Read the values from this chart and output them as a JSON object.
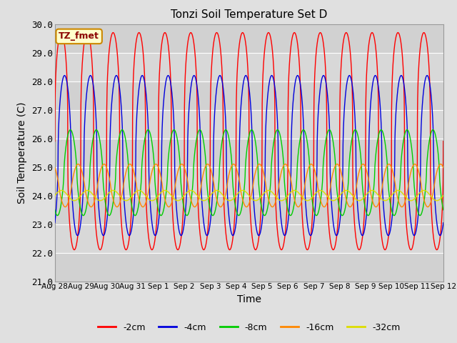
{
  "title": "Tonzi Soil Temperature Set D",
  "xlabel": "Time",
  "ylabel": "Soil Temperature (C)",
  "ylim": [
    21.0,
    30.0
  ],
  "yticks": [
    21.0,
    22.0,
    23.0,
    24.0,
    25.0,
    26.0,
    27.0,
    28.0,
    29.0,
    30.0
  ],
  "annotation_label": "TZ_fmet",
  "series_order": [
    "-2cm",
    "-4cm",
    "-8cm",
    "-16cm",
    "-32cm"
  ],
  "series": {
    "-2cm": {
      "color": "#ff0000",
      "amplitude": 3.8,
      "phase": 0.0,
      "mean": 25.9,
      "trend": 0.0,
      "sharpness": 3.0
    },
    "-4cm": {
      "color": "#0000dd",
      "amplitude": 2.8,
      "phase": 0.25,
      "mean": 25.4,
      "trend": 0.0,
      "sharpness": 2.0
    },
    "-8cm": {
      "color": "#00cc00",
      "amplitude": 1.5,
      "phase": 0.7,
      "mean": 24.8,
      "trend": 0.0,
      "sharpness": 1.5
    },
    "-16cm": {
      "color": "#ff8800",
      "amplitude": 0.75,
      "phase": 1.3,
      "mean": 24.35,
      "trend": 0.0,
      "sharpness": 1.2
    },
    "-32cm": {
      "color": "#dddd00",
      "amplitude": 0.18,
      "phase": 2.0,
      "mean": 24.0,
      "trend": 0.0,
      "sharpness": 1.0
    }
  },
  "x_start_day": 0,
  "x_end_day": 15.0,
  "n_points": 2000,
  "xtick_labels": [
    "Aug 28",
    "Aug 29",
    "Aug 30",
    "Aug 31",
    "Sep 1",
    "Sep 2",
    "Sep 3",
    "Sep 4",
    "Sep 5",
    "Sep 6",
    "Sep 7",
    "Sep 8",
    "Sep 9",
    "Sep 10",
    "Sep 11",
    "Sep 12"
  ],
  "xtick_positions": [
    0,
    1,
    2,
    3,
    4,
    5,
    6,
    7,
    8,
    9,
    10,
    11,
    12,
    13,
    14,
    15
  ],
  "fig_background_color": "#e0e0e0",
  "plot_bg_color": "#d8d8d8",
  "grid_color": "#ffffff",
  "legend_colors": [
    "#ff0000",
    "#0000dd",
    "#00cc00",
    "#ff8800",
    "#dddd00"
  ],
  "legend_labels": [
    "-2cm",
    "-4cm",
    "-8cm",
    "-16cm",
    "-32cm"
  ],
  "figsize": [
    6.4,
    4.8
  ],
  "dpi": 100
}
